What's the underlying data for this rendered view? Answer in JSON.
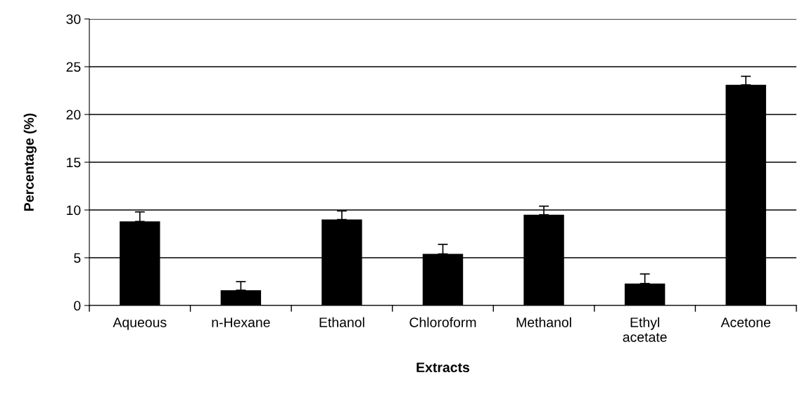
{
  "chart_data": {
    "type": "bar",
    "xlabel": "Extracts",
    "ylabel": "Percentage (%)",
    "categories": [
      "Aqueous",
      "n-Hexane",
      "Ethanol",
      "Chloroform",
      "Methanol",
      "Ethyl\nacetate",
      "Acetone"
    ],
    "values": [
      8.8,
      1.6,
      9.0,
      5.4,
      9.5,
      2.3,
      23.1
    ],
    "errors": [
      [
        8.8,
        9.8
      ],
      [
        1.6,
        2.5
      ],
      [
        9.0,
        9.9
      ],
      [
        5.4,
        6.4
      ],
      [
        9.5,
        10.4
      ],
      [
        2.3,
        3.3
      ],
      [
        23.1,
        24.0
      ]
    ],
    "color": "#000000",
    "ylim": [
      0,
      30
    ],
    "yticks": [
      0,
      5,
      10,
      15,
      20,
      25,
      30
    ],
    "grid": "y"
  }
}
